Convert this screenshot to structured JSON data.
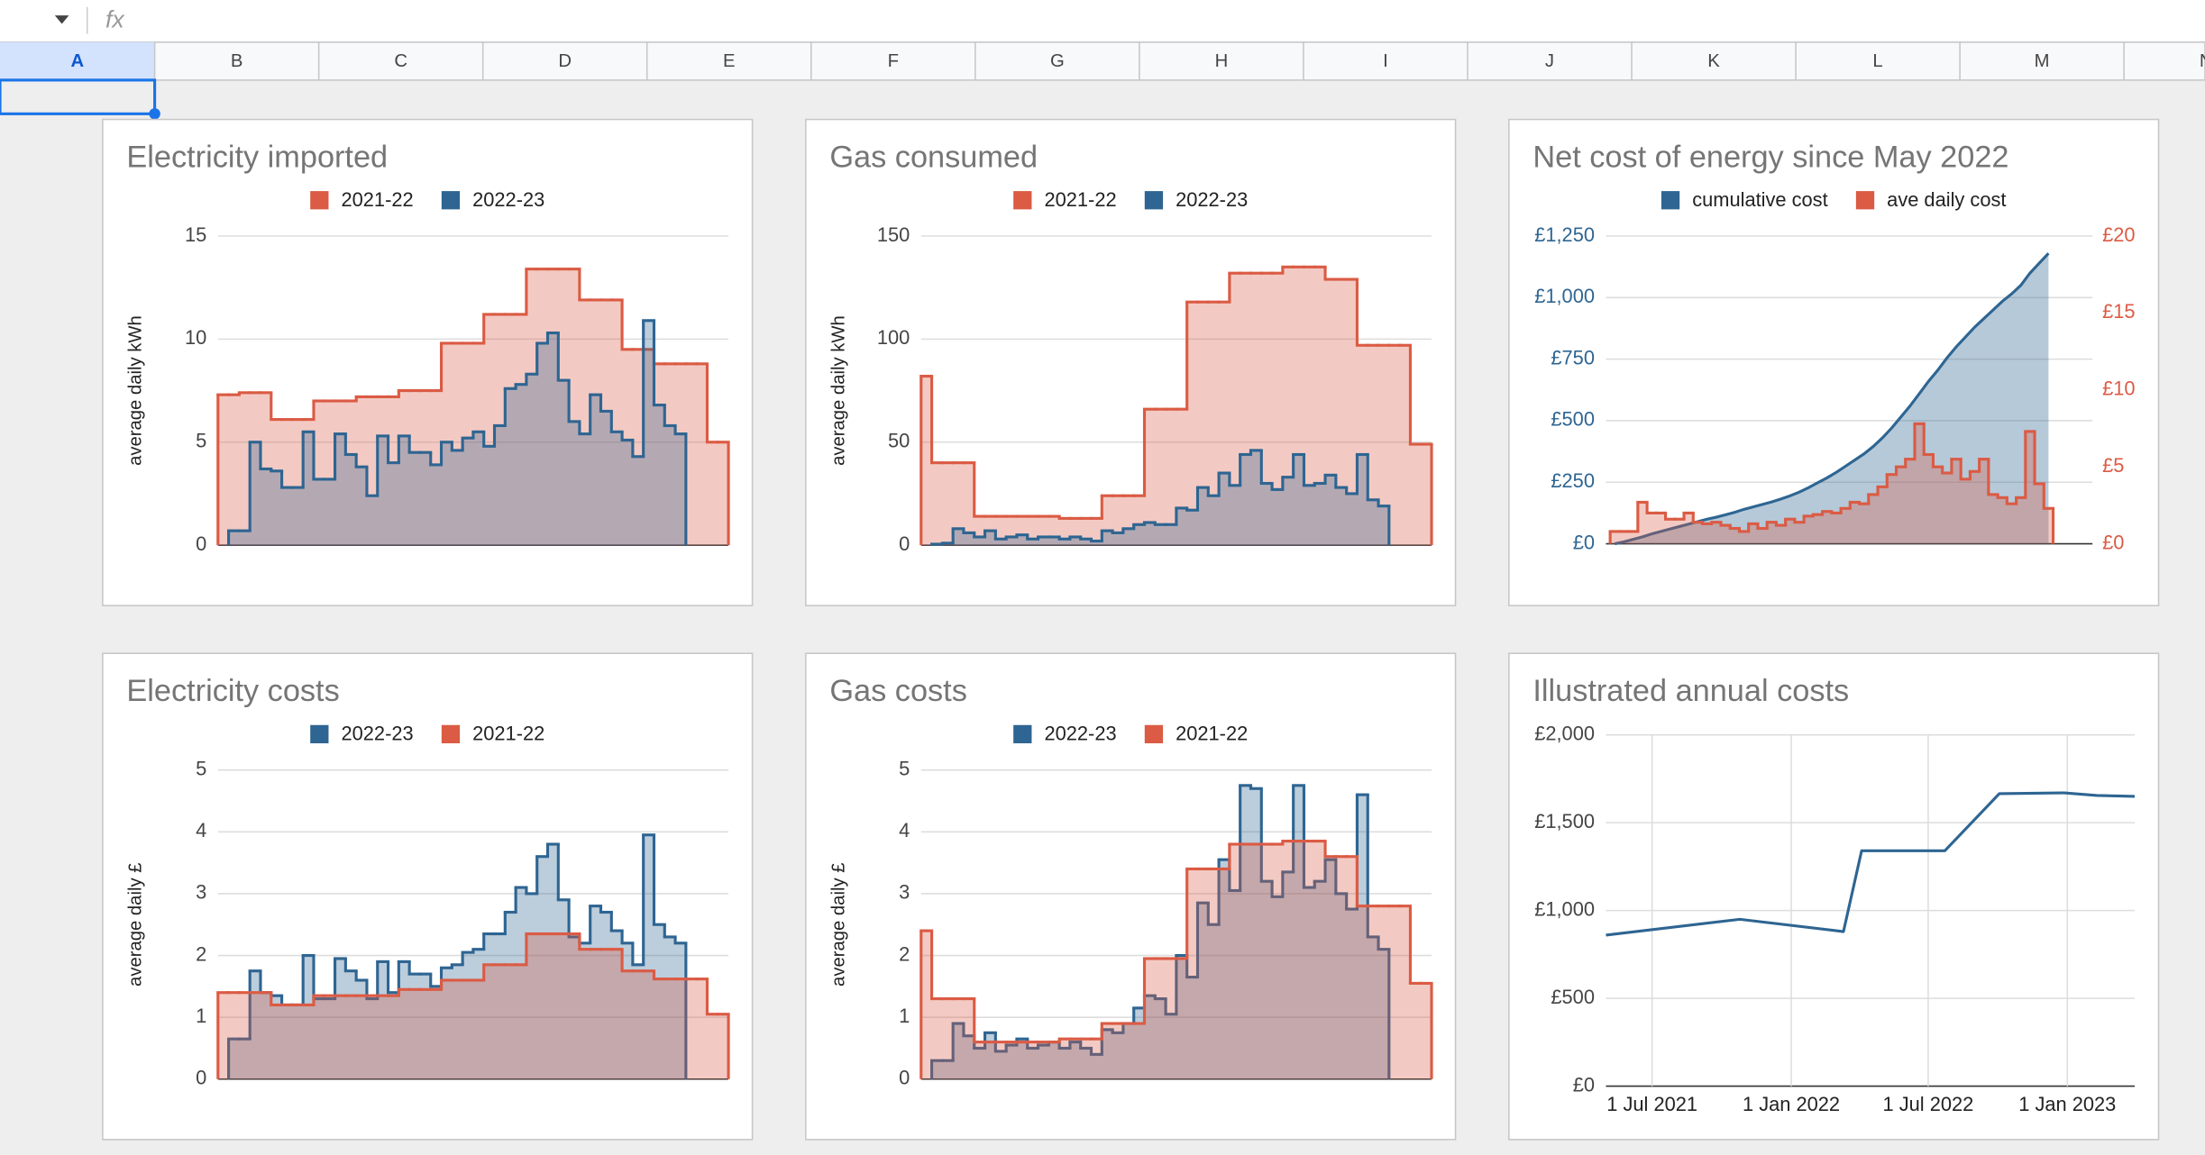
{
  "formula_label": "fx",
  "columns": [
    "A",
    "B",
    "C",
    "D",
    "E",
    "F",
    "G",
    "H",
    "I",
    "J",
    "K",
    "L",
    "M",
    "N"
  ],
  "chart_data": [
    {
      "type": "step",
      "title": "Electricity imported",
      "ylabel": "average daily kWh",
      "ylim": [
        0,
        15
      ],
      "yticks": [
        0,
        5,
        10,
        15
      ],
      "grid": true,
      "series": [
        {
          "name": "2021-22",
          "color": "#db5b44",
          "values": [
            7.3,
            7.3,
            7.4,
            7.4,
            7.4,
            6.1,
            6.1,
            6.1,
            6.1,
            7.0,
            7.0,
            7.0,
            7.0,
            7.2,
            7.2,
            7.2,
            7.2,
            7.5,
            7.5,
            7.5,
            7.5,
            9.8,
            9.8,
            9.8,
            9.8,
            11.2,
            11.2,
            11.2,
            11.2,
            13.4,
            13.4,
            13.4,
            13.4,
            13.4,
            11.9,
            11.9,
            11.9,
            11.9,
            9.5,
            9.5,
            9.5,
            8.8,
            8.8,
            8.8,
            8.8,
            8.8,
            5.0,
            5.0
          ]
        },
        {
          "name": "2022-23",
          "color": "#2e6592",
          "values": [
            null,
            0.7,
            0.7,
            5.0,
            3.7,
            3.6,
            2.8,
            2.8,
            5.5,
            3.2,
            3.2,
            5.4,
            4.4,
            3.8,
            2.4,
            5.3,
            4.0,
            5.3,
            4.5,
            4.5,
            3.9,
            5.0,
            4.6,
            5.2,
            5.5,
            4.8,
            5.8,
            7.6,
            7.8,
            8.3,
            9.8,
            10.3,
            8.0,
            6.0,
            5.4,
            7.3,
            6.5,
            5.5,
            5.1,
            4.3,
            10.9,
            6.8,
            5.8,
            5.4,
            null,
            null,
            null,
            null
          ]
        }
      ]
    },
    {
      "type": "step",
      "title": "Gas consumed",
      "ylabel": "average daily kWh",
      "ylim": [
        0,
        150
      ],
      "yticks": [
        0,
        50,
        100,
        150
      ],
      "grid": true,
      "series": [
        {
          "name": "2021-22",
          "color": "#db5b44",
          "values": [
            82,
            40,
            40,
            40,
            40,
            14,
            14,
            14,
            14,
            14,
            14,
            14,
            14,
            13,
            13,
            13,
            13,
            24,
            24,
            24,
            24,
            66,
            66,
            66,
            66,
            118,
            118,
            118,
            118,
            132,
            132,
            132,
            132,
            132,
            135,
            135,
            135,
            135,
            129,
            129,
            129,
            97,
            97,
            97,
            97,
            97,
            49,
            49
          ]
        },
        {
          "name": "2022-23",
          "color": "#2e6592",
          "values": [
            null,
            0.5,
            1,
            8,
            6,
            4,
            7,
            3,
            4,
            5,
            3,
            4,
            4,
            3,
            4,
            3,
            2,
            7,
            6,
            8,
            10,
            11,
            10,
            10,
            18,
            17,
            28,
            24,
            35,
            29,
            44,
            46,
            30,
            27,
            33,
            44,
            29,
            30,
            34,
            28,
            25,
            44,
            22,
            19,
            null,
            null,
            null,
            null
          ]
        }
      ]
    },
    {
      "type": "combo",
      "title": "Net cost of energy since May 2022",
      "ylim": [
        0,
        1250
      ],
      "yticks": [
        {
          "value": 0,
          "label": "£0"
        },
        {
          "value": 250,
          "label": "£250"
        },
        {
          "value": 500,
          "label": "£500"
        },
        {
          "value": 750,
          "label": "£750"
        },
        {
          "value": 1000,
          "label": "£1,000"
        },
        {
          "value": 1250,
          "label": "£1,250"
        }
      ],
      "y2lim": [
        0,
        20
      ],
      "y2ticks": [
        {
          "value": 0,
          "label": "£0"
        },
        {
          "value": 5,
          "label": "£5"
        },
        {
          "value": 10,
          "label": "£10"
        },
        {
          "value": 15,
          "label": "£15"
        },
        {
          "value": 20,
          "label": "£20"
        }
      ],
      "grid": true,
      "series": [
        {
          "name": "cumulative cost",
          "color": "#2e6592",
          "kind": "area",
          "values": [
            0,
            8,
            18,
            28,
            40,
            50,
            60,
            70,
            80,
            90,
            100,
            108,
            118,
            128,
            140,
            150,
            160,
            170,
            182,
            195,
            210,
            228,
            248,
            268,
            290,
            315,
            340,
            365,
            395,
            430,
            470,
            515,
            560,
            610,
            660,
            705,
            755,
            800,
            840,
            880,
            915,
            950,
            985,
            1015,
            1050,
            1100,
            1140,
            1180
          ]
        },
        {
          "name": "ave daily cost",
          "color": "#db5b44",
          "kind": "step",
          "axis": "y2",
          "values": [
            0.8,
            0.8,
            0.8,
            2.7,
            2.0,
            2.0,
            1.6,
            1.6,
            2.0,
            1.4,
            1.3,
            1.4,
            1.2,
            1.0,
            0.8,
            1.3,
            1.0,
            1.4,
            1.2,
            1.6,
            1.4,
            1.8,
            1.9,
            2.1,
            2.0,
            2.3,
            2.7,
            2.6,
            3.2,
            3.7,
            4.5,
            5.0,
            5.5,
            7.8,
            5.8,
            5.0,
            4.6,
            5.5,
            4.2,
            4.7,
            5.5,
            3.2,
            3.0,
            2.6,
            3.0,
            7.3,
            3.9,
            2.3
          ]
        }
      ]
    },
    {
      "type": "step",
      "title": "Electricity costs",
      "ylabel": "average daily £",
      "ylim": [
        0,
        5
      ],
      "yticks": [
        0,
        1,
        2,
        3,
        4,
        5
      ],
      "grid": true,
      "series": [
        {
          "name": "2022-23",
          "color": "#2e6592",
          "values": [
            null,
            0.65,
            0.65,
            1.75,
            1.4,
            1.35,
            1.2,
            1.2,
            2.0,
            1.3,
            1.3,
            1.95,
            1.75,
            1.6,
            1.3,
            1.9,
            1.4,
            1.9,
            1.7,
            1.7,
            1.5,
            1.8,
            1.85,
            2.05,
            2.1,
            2.35,
            2.35,
            2.7,
            3.1,
            3.0,
            3.6,
            3.8,
            2.9,
            2.3,
            2.2,
            2.8,
            2.7,
            2.4,
            2.2,
            1.85,
            3.95,
            2.5,
            2.3,
            2.2,
            null,
            null,
            null,
            null
          ]
        },
        {
          "name": "2021-22",
          "color": "#db5b44",
          "values": [
            1.4,
            1.4,
            1.4,
            1.4,
            1.4,
            1.2,
            1.2,
            1.2,
            1.2,
            1.35,
            1.35,
            1.35,
            1.35,
            1.35,
            1.35,
            1.35,
            1.35,
            1.45,
            1.45,
            1.45,
            1.45,
            1.6,
            1.6,
            1.6,
            1.6,
            1.85,
            1.85,
            1.85,
            1.85,
            2.35,
            2.35,
            2.35,
            2.35,
            2.35,
            2.1,
            2.1,
            2.1,
            2.1,
            1.75,
            1.75,
            1.75,
            1.62,
            1.62,
            1.62,
            1.62,
            1.62,
            1.05,
            1.05
          ]
        }
      ]
    },
    {
      "type": "step",
      "title": "Gas costs",
      "ylabel": "average daily £",
      "ylim": [
        0,
        5
      ],
      "yticks": [
        0,
        1,
        2,
        3,
        4,
        5
      ],
      "grid": true,
      "series": [
        {
          "name": "2022-23",
          "color": "#2e6592",
          "values": [
            null,
            0.3,
            0.3,
            0.9,
            0.7,
            0.5,
            0.75,
            0.45,
            0.55,
            0.65,
            0.5,
            0.55,
            0.6,
            0.5,
            0.6,
            0.5,
            0.4,
            0.8,
            0.75,
            0.9,
            1.15,
            1.35,
            1.3,
            1.05,
            2.0,
            1.65,
            2.85,
            2.5,
            3.55,
            3.05,
            4.75,
            4.7,
            3.2,
            2.95,
            3.35,
            4.75,
            3.1,
            3.2,
            3.55,
            3.0,
            2.75,
            4.6,
            2.3,
            2.1,
            null,
            null,
            null,
            null
          ]
        },
        {
          "name": "2021-22",
          "color": "#db5b44",
          "values": [
            2.4,
            1.3,
            1.3,
            1.3,
            1.3,
            0.6,
            0.6,
            0.6,
            0.6,
            0.6,
            0.6,
            0.6,
            0.6,
            0.65,
            0.65,
            0.65,
            0.65,
            0.9,
            0.9,
            0.9,
            0.9,
            1.95,
            1.95,
            1.95,
            1.95,
            3.4,
            3.4,
            3.4,
            3.4,
            3.8,
            3.8,
            3.8,
            3.8,
            3.8,
            3.85,
            3.85,
            3.85,
            3.85,
            3.6,
            3.6,
            3.6,
            2.8,
            2.8,
            2.8,
            2.8,
            2.8,
            1.55,
            1.55
          ]
        }
      ]
    },
    {
      "type": "line",
      "title": "Illustrated annual costs",
      "color": "#2e6592",
      "x": [
        "2021-05-01",
        "2021-10-25",
        "2022-03-11",
        "2022-04-04",
        "2022-07-23",
        "2022-10-03",
        "2022-12-28",
        "2023-02-09",
        "2023-03-31"
      ],
      "values": [
        860,
        950,
        880,
        1340,
        1340,
        1665,
        1670,
        1655,
        1650
      ],
      "xlim": [
        "2021-05-01",
        "2023-03-31"
      ],
      "xticks": [
        {
          "value": "2021-07-01",
          "label": "1 Jul 2021"
        },
        {
          "value": "2022-01-01",
          "label": "1 Jan 2022"
        },
        {
          "value": "2022-07-01",
          "label": "1 Jul 2022"
        },
        {
          "value": "2023-01-01",
          "label": "1 Jan 2023"
        }
      ],
      "ylim": [
        0,
        2000
      ],
      "yticks": [
        {
          "value": 0,
          "label": "£0"
        },
        {
          "value": 500,
          "label": "£500"
        },
        {
          "value": 1000,
          "label": "£1,000"
        },
        {
          "value": 1500,
          "label": "£1,500"
        },
        {
          "value": 2000,
          "label": "£2,000"
        }
      ],
      "grid": true
    }
  ]
}
